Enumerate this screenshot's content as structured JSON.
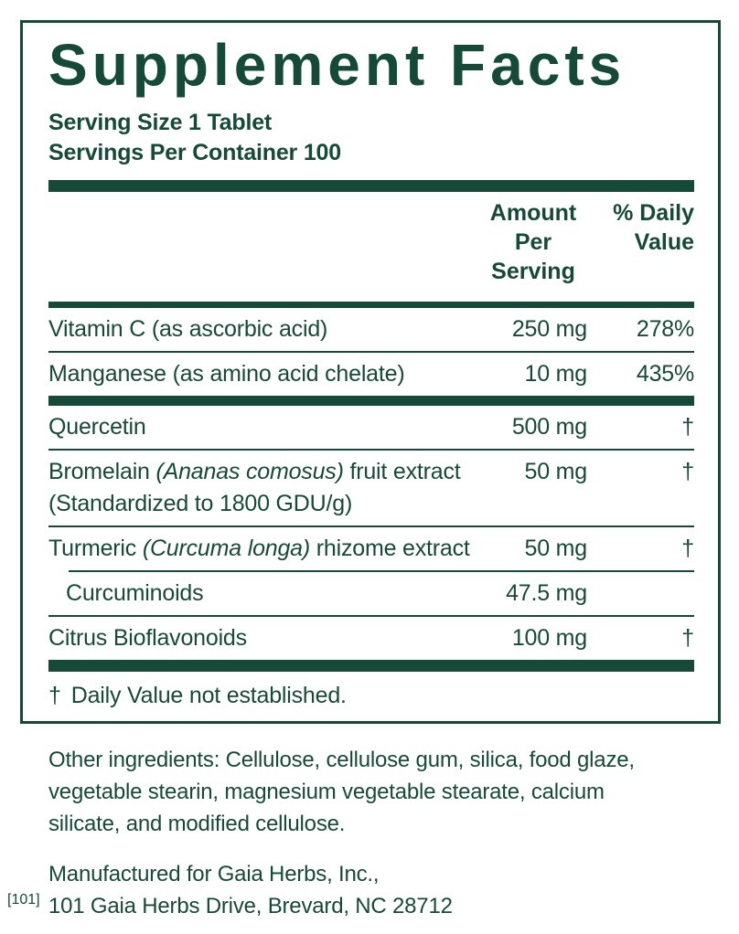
{
  "colors": {
    "green": "#164A38",
    "background": "#FFFFFF"
  },
  "label": {
    "title": "Supplement Facts",
    "serving_size": "Serving Size 1 Tablet",
    "servings_per_container": "Servings Per Container 100",
    "columns": {
      "amount_line1": "Amount",
      "amount_line2": "Per Serving",
      "dv_line1": "% Daily",
      "dv_line2": "Value"
    },
    "rows": [
      {
        "sep_before": "none",
        "name": [
          {
            "t": "Vitamin C (as ascorbic acid)"
          }
        ],
        "amount": "250 mg",
        "dv": "278%"
      },
      {
        "sep_before": "thin",
        "name": [
          {
            "t": "Manganese (as amino acid chelate)"
          }
        ],
        "amount": "10 mg",
        "dv": "435%"
      },
      {
        "sep_before": "bar",
        "name": [
          {
            "t": "Quercetin"
          }
        ],
        "amount": "500 mg",
        "dv": "†"
      },
      {
        "sep_before": "thin",
        "name": [
          {
            "t": "Bromelain "
          },
          {
            "t": "(Ananas comosus)",
            "italic": true
          },
          {
            "t": " fruit extract"
          }
        ],
        "note": "(Standardized to 1800 GDU/g)",
        "amount": "50 mg",
        "dv": "†"
      },
      {
        "sep_before": "thin",
        "name": [
          {
            "t": "Turmeric "
          },
          {
            "t": "(Curcuma longa)",
            "italic": true
          },
          {
            "t": " rhizome extract"
          }
        ],
        "amount": "50 mg",
        "dv": "†"
      },
      {
        "sep_before": "thin-indent",
        "indent": true,
        "name": [
          {
            "t": "Curcuminoids"
          }
        ],
        "amount": "47.5 mg",
        "dv": ""
      },
      {
        "sep_before": "thin",
        "name": [
          {
            "t": "Citrus Bioflavonoids"
          }
        ],
        "amount": "100 mg",
        "dv": "†"
      }
    ],
    "footnote": {
      "symbol": "†",
      "text": "Daily Value not established."
    }
  },
  "other_ingredients": {
    "lines": [
      "Other ingredients: Cellulose, cellulose gum, silica, food glaze,",
      "vegetable stearin, magnesium vegetable stearate, calcium",
      "silicate, and modified cellulose."
    ]
  },
  "manufacturer": {
    "lines": [
      "Manufactured for Gaia Herbs, Inc.,",
      "101 Gaia Herbs Drive, Brevard, NC 28712"
    ]
  },
  "corner_mark": "[101]"
}
